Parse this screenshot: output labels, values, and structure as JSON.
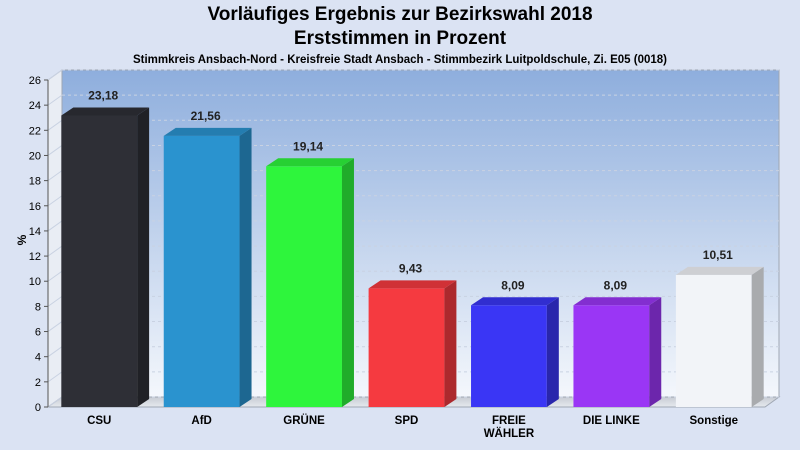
{
  "header": {
    "title_line1": "Vorläufiges Ergebnis zur Bezirkswahl 2018",
    "title_line2": "Erststimmen in Prozent",
    "subtitle": "Stimmkreis Ansbach-Nord - Kreisfreie Stadt Ansbach - Stimmbezirk Luitpoldschule, Zi. E05 (0018)"
  },
  "chart_data": {
    "type": "bar",
    "title": "Vorläufiges Ergebnis zur Bezirkswahl 2018 — Erststimmen in Prozent",
    "ylabel": "%",
    "xlabel": "",
    "ylim": [
      0,
      26
    ],
    "yticks": [
      0,
      2,
      4,
      6,
      8,
      10,
      12,
      14,
      16,
      18,
      20,
      22,
      24,
      26
    ],
    "grid": true,
    "categories": [
      "CSU",
      "AfD",
      "GRÜNE",
      "SPD",
      "FREIE WÄHLER",
      "DIE LINKE",
      "Sonstige"
    ],
    "category_lines": [
      [
        "CSU"
      ],
      [
        "AfD"
      ],
      [
        "GRÜNE"
      ],
      [
        "SPD"
      ],
      [
        "FREIE",
        "WÄHLER"
      ],
      [
        "DIE LINKE"
      ],
      [
        "Sonstige"
      ]
    ],
    "values": [
      23.18,
      21.56,
      19.14,
      9.43,
      8.09,
      8.09,
      10.51
    ],
    "value_labels": [
      "23,18",
      "21,56",
      "19,14",
      "9,43",
      "8,09",
      "8,09",
      "10,51"
    ],
    "colors": [
      "#2e2f36",
      "#2a93cf",
      "#2ef53c",
      "#f53a40",
      "#3a36f5",
      "#9a36f5",
      "#f2f4f8"
    ]
  }
}
